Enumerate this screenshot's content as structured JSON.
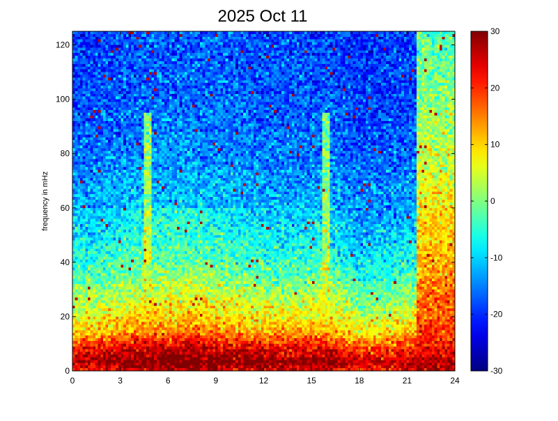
{
  "chart_data": {
    "type": "heatmap",
    "title": "2025 Oct 11",
    "xlabel": "",
    "ylabel": "frequency in mHz",
    "xlim": [
      0,
      24
    ],
    "ylim": [
      0,
      125
    ],
    "x_ticks": [
      0,
      3,
      6,
      9,
      12,
      15,
      18,
      21,
      24
    ],
    "y_ticks": [
      0,
      20,
      40,
      60,
      80,
      100,
      120
    ],
    "colorbar": {
      "colormap": "jet",
      "clim": [
        -30,
        30
      ],
      "ticks": [
        -30,
        -20,
        -10,
        0,
        10,
        20,
        30
      ]
    },
    "grid": false,
    "grid_resolution": {
      "x_cells": 150,
      "y_cells": 125
    },
    "background_level_by_frequency": [
      {
        "f": 0,
        "value": 22
      },
      {
        "f": 3,
        "value": 28
      },
      {
        "f": 8,
        "value": 22
      },
      {
        "f": 15,
        "value": 10
      },
      {
        "f": 25,
        "value": 3
      },
      {
        "f": 40,
        "value": -6
      },
      {
        "f": 60,
        "value": -12
      },
      {
        "f": 80,
        "value": -16
      },
      {
        "f": 100,
        "value": -18
      },
      {
        "f": 125,
        "value": -19
      }
    ],
    "background_level_by_time": [
      {
        "t": 0,
        "offset": 0
      },
      {
        "t": 2,
        "offset": 1
      },
      {
        "t": 4.5,
        "offset": 4
      },
      {
        "t": 7.5,
        "offset": 5
      },
      {
        "t": 10,
        "offset": 3
      },
      {
        "t": 13,
        "offset": 1
      },
      {
        "t": 16,
        "offset": 2
      },
      {
        "t": 18,
        "offset": -3
      },
      {
        "t": 20,
        "offset": -2
      },
      {
        "t": 21.5,
        "offset": 0
      }
    ],
    "features": [
      {
        "name": "broadband event",
        "t_start": 21.6,
        "t_end": 24,
        "value_low_freq": 30,
        "value_high_freq": -3
      },
      {
        "name": "narrow streak",
        "t": 4.7,
        "value": 8
      },
      {
        "name": "narrow streak",
        "t": 15.9,
        "value": 7
      }
    ],
    "speckle_value": 27
  }
}
